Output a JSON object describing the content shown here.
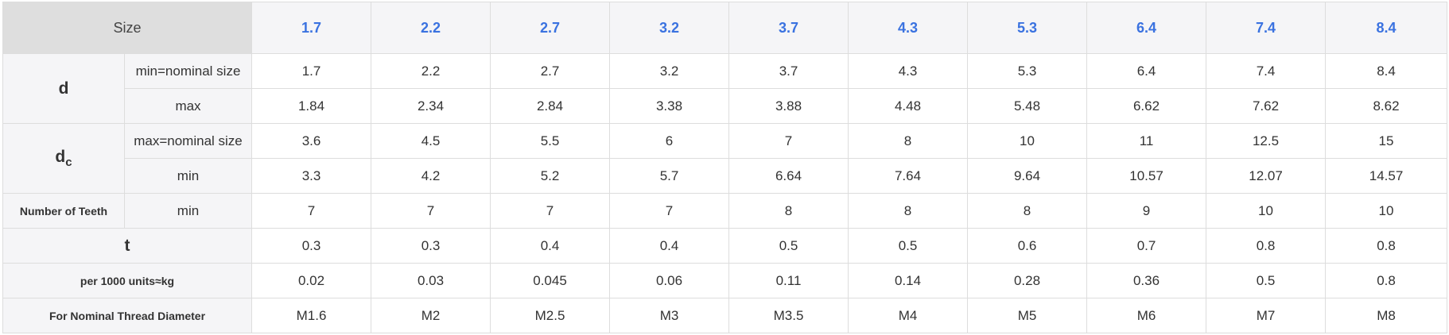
{
  "header": {
    "size_label": "Size",
    "sizes": [
      "1.7",
      "2.2",
      "2.7",
      "3.2",
      "3.7",
      "4.3",
      "5.3",
      "6.4",
      "7.4",
      "8.4"
    ]
  },
  "d": {
    "label": "d",
    "rows": [
      {
        "sub": "min=nominal size",
        "values": [
          "1.7",
          "2.2",
          "2.7",
          "3.2",
          "3.7",
          "4.3",
          "5.3",
          "6.4",
          "7.4",
          "8.4"
        ]
      },
      {
        "sub": "max",
        "values": [
          "1.84",
          "2.34",
          "2.84",
          "3.38",
          "3.88",
          "4.48",
          "5.48",
          "6.62",
          "7.62",
          "8.62"
        ]
      }
    ]
  },
  "dc": {
    "label_main": "d",
    "label_sub": "c",
    "rows": [
      {
        "sub": "max=nominal size",
        "values": [
          "3.6",
          "4.5",
          "5.5",
          "6",
          "7",
          "8",
          "10",
          "11",
          "12.5",
          "15"
        ]
      },
      {
        "sub": "min",
        "values": [
          "3.3",
          "4.2",
          "5.2",
          "5.7",
          "6.64",
          "7.64",
          "9.64",
          "10.57",
          "12.07",
          "14.57"
        ]
      }
    ]
  },
  "teeth": {
    "label": "Number of Teeth",
    "sub": "min",
    "values": [
      "7",
      "7",
      "7",
      "7",
      "8",
      "8",
      "8",
      "9",
      "10",
      "10"
    ]
  },
  "t": {
    "label": "t",
    "values": [
      "0.3",
      "0.3",
      "0.4",
      "0.4",
      "0.5",
      "0.5",
      "0.6",
      "0.7",
      "0.8",
      "0.8"
    ]
  },
  "weight": {
    "label": "per 1000 units≈kg",
    "values": [
      "0.02",
      "0.03",
      "0.045",
      "0.06",
      "0.11",
      "0.14",
      "0.28",
      "0.36",
      "0.5",
      "0.8"
    ]
  },
  "thread": {
    "label": "For Nominal Thread Diameter",
    "values": [
      "M1.6",
      "M2",
      "M2.5",
      "M3",
      "M3.5",
      "M4",
      "M5",
      "M6",
      "M7",
      "M8"
    ]
  }
}
